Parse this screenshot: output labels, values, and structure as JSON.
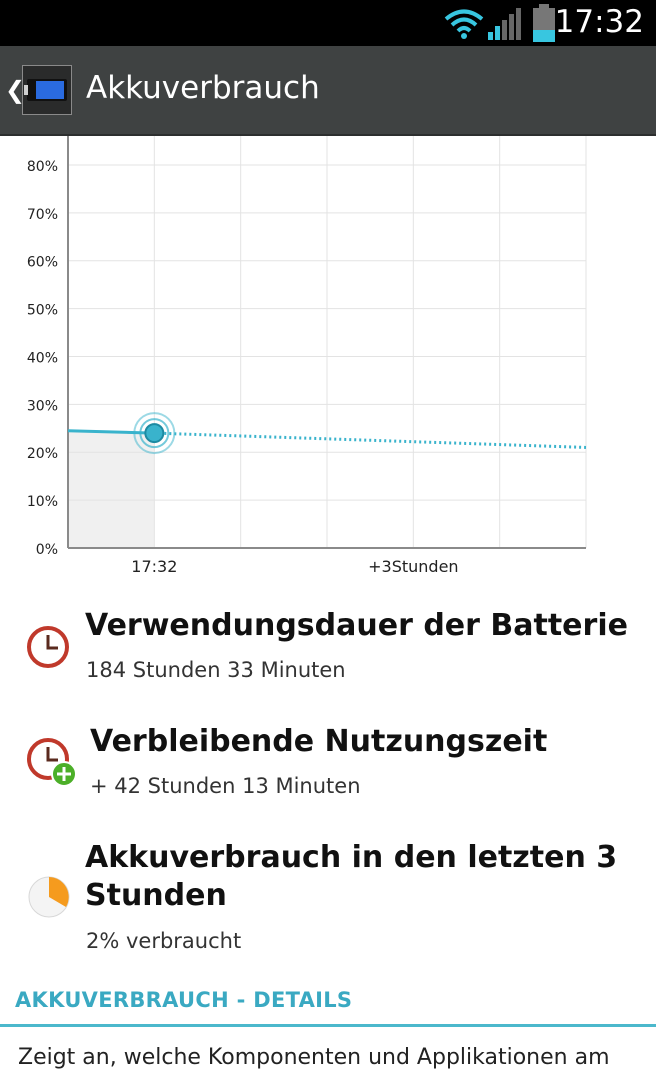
{
  "status_bar": {
    "time": "17:32",
    "icons": [
      "wifi-icon",
      "signal-icon",
      "battery-icon"
    ]
  },
  "app_bar": {
    "title": "Akkuverbrauch",
    "icon": "battery-icon",
    "back": "back-arrow-icon"
  },
  "chart_data": {
    "type": "line",
    "title": "",
    "xlabel": "",
    "ylabel": "",
    "y_ticks": [
      "80%",
      "70%",
      "60%",
      "50%",
      "40%",
      "30%",
      "20%",
      "10%",
      "0%"
    ],
    "x_tick_labels": [
      "17:32",
      "+3Stunden"
    ],
    "ylim": [
      0,
      85
    ],
    "grid": true,
    "series": [
      {
        "style": "solid",
        "x": [
          -1,
          0
        ],
        "values": [
          24.5,
          24
        ]
      },
      {
        "style": "dotted",
        "x": [
          0,
          5
        ],
        "values": [
          24,
          21
        ]
      }
    ],
    "current_marker": {
      "x_label": "17:32",
      "value": 24
    },
    "colors": {
      "line": "#39b3cc",
      "grid": "#e3e3e3",
      "past_fill": "#f0f0f0"
    }
  },
  "items": [
    {
      "title": "Verwendungsdauer der Batterie",
      "subtitle": "184 Stunden 33 Minuten",
      "icon": "clock-icon"
    },
    {
      "title": "Verbleibende Nutzungszeit",
      "subtitle": "+ 42 Stunden 13 Minuten",
      "icon": "clock-plus-icon"
    },
    {
      "title_line1": "Akkuverbrauch in den letzten 3",
      "title_line2": "Stunden",
      "subtitle": "2% verbraucht",
      "icon": "pie-icon"
    }
  ],
  "details": {
    "header": "AKKUVERBRAUCH - DETAILS",
    "text": "Zeigt an, welche Komponenten und Applikationen am"
  },
  "colors": {
    "accent": "#3aa9c2",
    "appbar": "#3f4242",
    "clock_red": "#c0392b",
    "plus_green": "#4caf28",
    "pie_orange": "#f59b1e"
  }
}
